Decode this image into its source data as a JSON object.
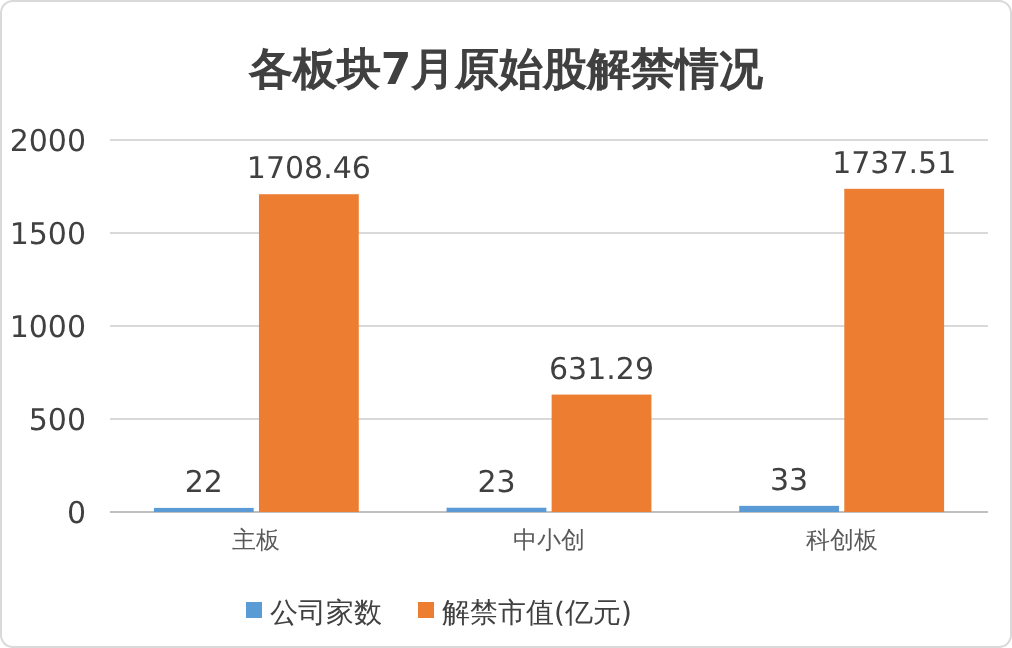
{
  "chart_data": {
    "type": "bar",
    "title": "各板块7月原始股解禁情况",
    "categories": [
      "主板",
      "中小创",
      "科创板"
    ],
    "series": [
      {
        "name": "公司家数",
        "color": "#5b9bd5",
        "values": [
          22,
          23,
          33
        ]
      },
      {
        "name": "解禁市值(亿元)",
        "color": "#ed7d31",
        "values": [
          1708.46,
          631.29,
          1737.51
        ]
      }
    ],
    "ylim": [
      0,
      2000
    ],
    "yticks": [
      0,
      500,
      1000,
      1500,
      2000
    ],
    "grid": "y",
    "legend": "bottom",
    "data_labels": true
  }
}
